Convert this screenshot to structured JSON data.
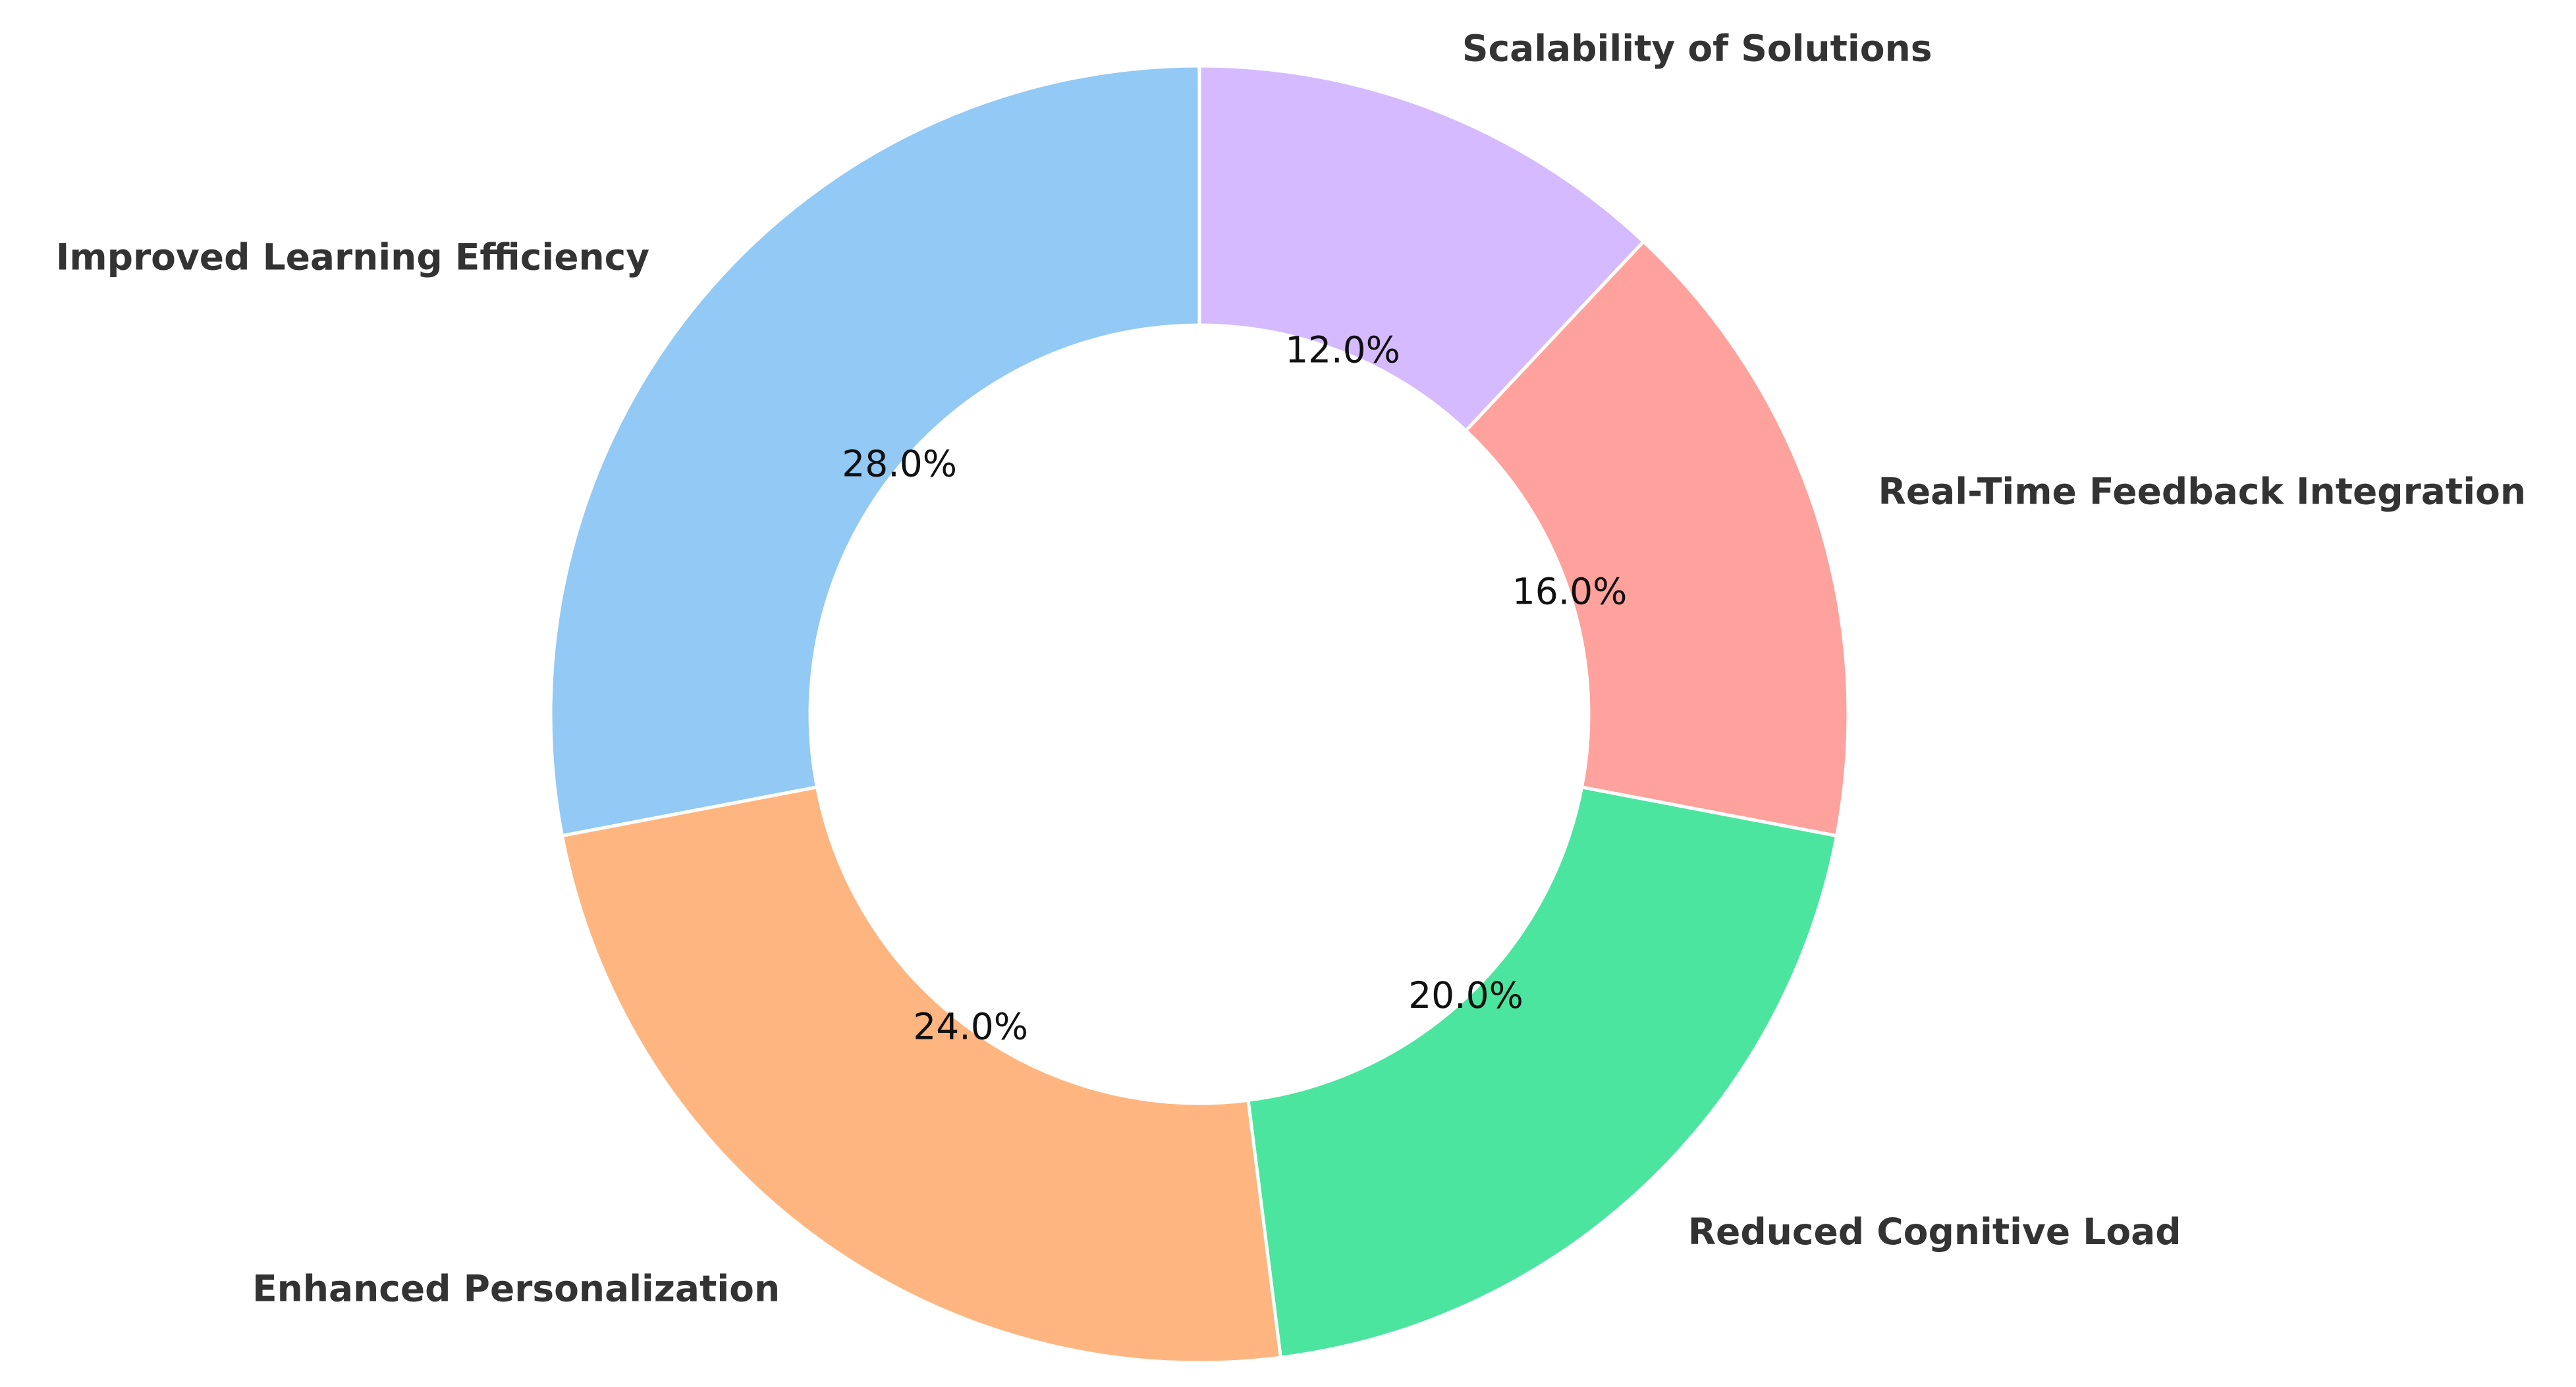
{
  "chart_data": {
    "type": "donut",
    "categories": [
      "Improved Learning Efficiency",
      "Enhanced Personalization",
      "Reduced Cognitive Load",
      "Real-Time Feedback Integration",
      "Scalability of Solutions"
    ],
    "values": [
      28,
      24,
      20,
      16,
      12
    ],
    "value_labels": [
      "28.0%",
      "24.0%",
      "20.0%",
      "16.0%",
      "12.0%"
    ],
    "colors": [
      "#92c9f5",
      "#ffb580",
      "#4ce59f",
      "#ffa19c",
      "#d6baff"
    ]
  }
}
